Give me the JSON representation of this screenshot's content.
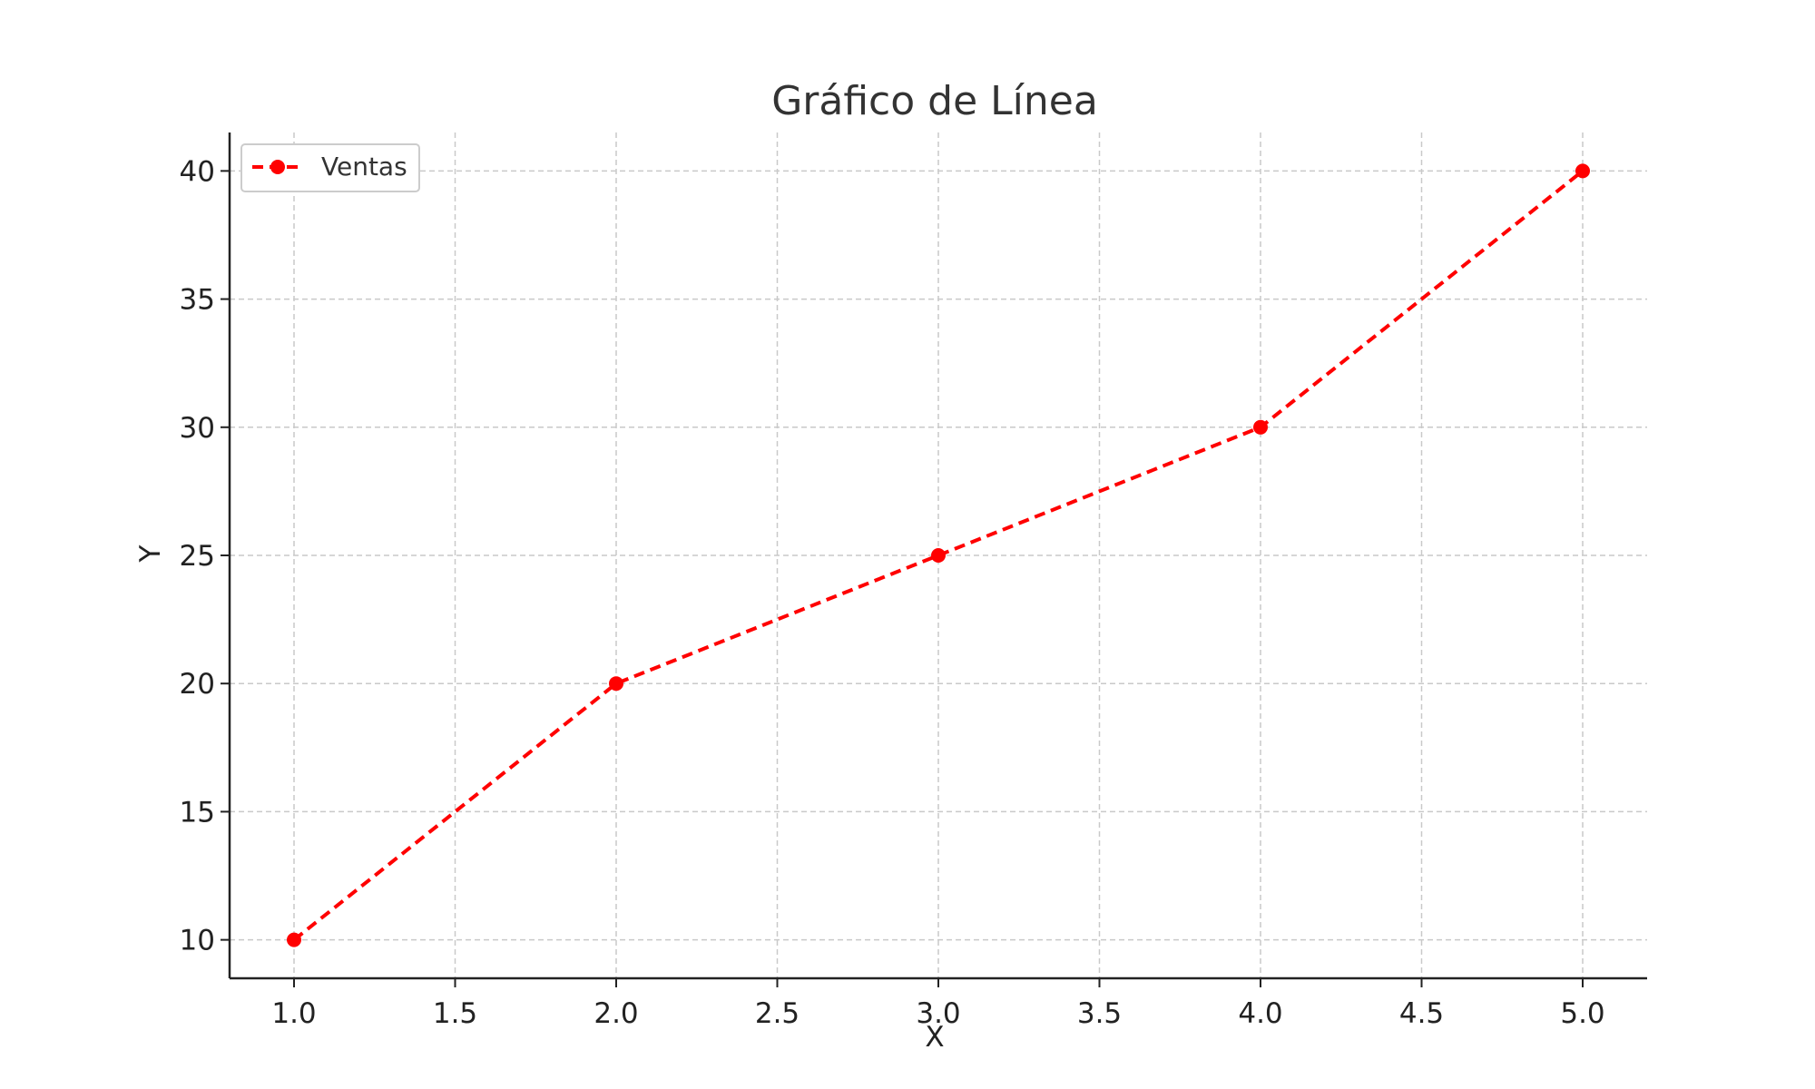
{
  "chart_data": {
    "type": "line",
    "title": "Gráfico de Línea",
    "xlabel": "X",
    "ylabel": "Y",
    "x": [
      1,
      2,
      3,
      4,
      5
    ],
    "series": [
      {
        "name": "Ventas",
        "values": [
          10,
          20,
          25,
          30,
          40
        ],
        "color": "#ff0000",
        "line_style": "dashed",
        "marker": "circle"
      }
    ],
    "xlim": [
      0.8,
      5.2
    ],
    "ylim": [
      8.5,
      41.5
    ],
    "xticks": [
      "1.0",
      "1.5",
      "2.0",
      "2.5",
      "3.0",
      "3.5",
      "4.0",
      "4.5",
      "5.0"
    ],
    "yticks": [
      "10",
      "15",
      "20",
      "25",
      "30",
      "35",
      "40"
    ],
    "grid": true,
    "legend_position": "top-left"
  }
}
